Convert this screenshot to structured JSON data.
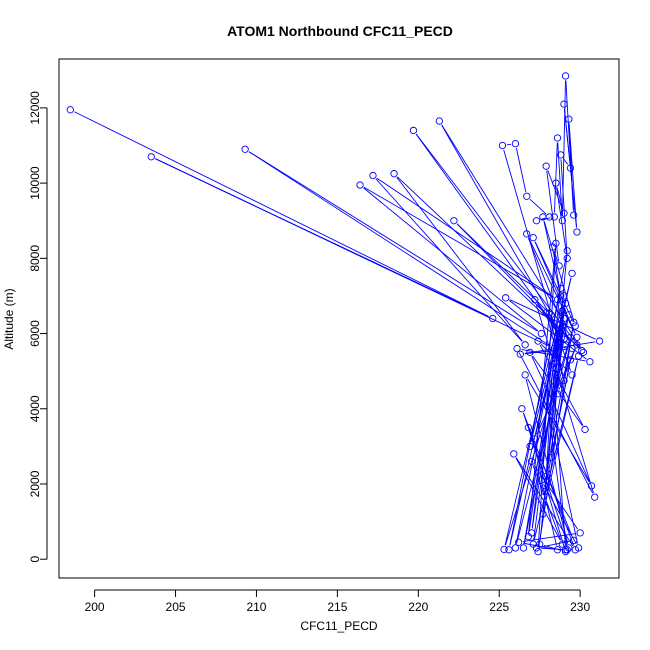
{
  "chart_data": {
    "type": "line",
    "title": "ATOM1 Northbound CFC11_PECD",
    "xlabel": "CFC11_PECD",
    "ylabel": "Altitude (m)",
    "xlim": [
      197.8,
      232.4
    ],
    "ylim": [
      -500,
      13300
    ],
    "xticks": [
      200,
      205,
      210,
      215,
      220,
      225,
      230
    ],
    "yticks": [
      0,
      2000,
      4000,
      6000,
      8000,
      10000,
      12000
    ],
    "grid": false,
    "legend": "none",
    "series_color": "#0000ff",
    "marker": "open-circle",
    "series": [
      {
        "x": [
          198.5,
          224.6,
          203.5,
          228.4,
          209.3,
          227.6,
          216.4,
          228.6,
          217.2,
          226.6,
          218.5,
          230.1,
          219.7,
          229.0,
          221.3,
          230.2,
          222.2,
          228.2,
          225.2,
          226.0,
          226.7,
          228.1,
          227.3,
          228.4,
          228.6,
          228.9,
          229.1,
          229.6,
          229.3,
          229.8,
          229.0,
          229.4,
          228.8,
          229.2,
          228.5,
          229.0,
          227.9,
          228.7,
          228.3,
          228.8,
          227.7,
          229.7,
          227.1,
          229.8,
          226.7,
          229.5,
          226.3,
          231.2,
          225.4,
          230.6,
          226.1,
          230.9,
          227.2,
          229.1,
          227.9,
          229.0,
          228.1,
          229.5,
          227.4,
          230.3,
          226.9,
          230.7,
          226.6,
          229.3,
          226.4,
          229.7,
          225.9,
          228.9,
          227.0,
          230.0,
          226.2,
          228.6,
          227.6,
          229.9,
          228.0,
          229.2,
          227.3,
          229.6,
          226.8,
          229.1,
          227.5,
          228.9,
          228.2,
          229.4,
          227.8,
          229.0,
          228.6,
          229.8,
          227.2,
          228.7,
          226.5,
          229.3,
          228.4,
          229.1,
          227.0,
          228.8,
          225.6,
          229.5,
          226.9,
          229.2,
          227.7,
          229.9,
          227.1,
          228.9,
          226.0,
          229.4,
          225.3,
          229.0,
          226.8,
          228.5,
          227.4,
          229.6,
          227.9,
          228.3,
          229.1
        ],
        "y": [
          11950,
          6400,
          10700,
          5600,
          10900,
          6000,
          9950,
          6900,
          10200,
          5700,
          10250,
          5550,
          11400,
          5850,
          11650,
          5500,
          9000,
          6500,
          11000,
          11050,
          9650,
          9100,
          9000,
          9100,
          11200,
          9000,
          12850,
          9150,
          11700,
          8700,
          12100,
          10400,
          10750,
          8000,
          10000,
          9200,
          10450,
          7800,
          8300,
          7000,
          9100,
          6200,
          8550,
          5900,
          8650,
          5600,
          5450,
          5800,
          6950,
          5250,
          5600,
          1650,
          6900,
          5700,
          6550,
          4750,
          6550,
          4900,
          5800,
          3450,
          5500,
          1950,
          4900,
          300,
          4000,
          250,
          2800,
          400,
          2600,
          700,
          450,
          250,
          2100,
          300,
          4050,
          250,
          300,
          500,
          3500,
          200,
          400,
          6200,
          2700,
          5300,
          1800,
          6400,
          4400,
          5700,
          3200,
          6000,
          300,
          6500,
          5200,
          6800,
          700,
          7200,
          250,
          7600,
          3000,
          8200,
          1200,
          5400,
          400,
          6600,
          300,
          5900,
          260,
          7000,
          600,
          8400,
          200,
          6300,
          2200,
          5100,
          250
        ]
      }
    ]
  }
}
